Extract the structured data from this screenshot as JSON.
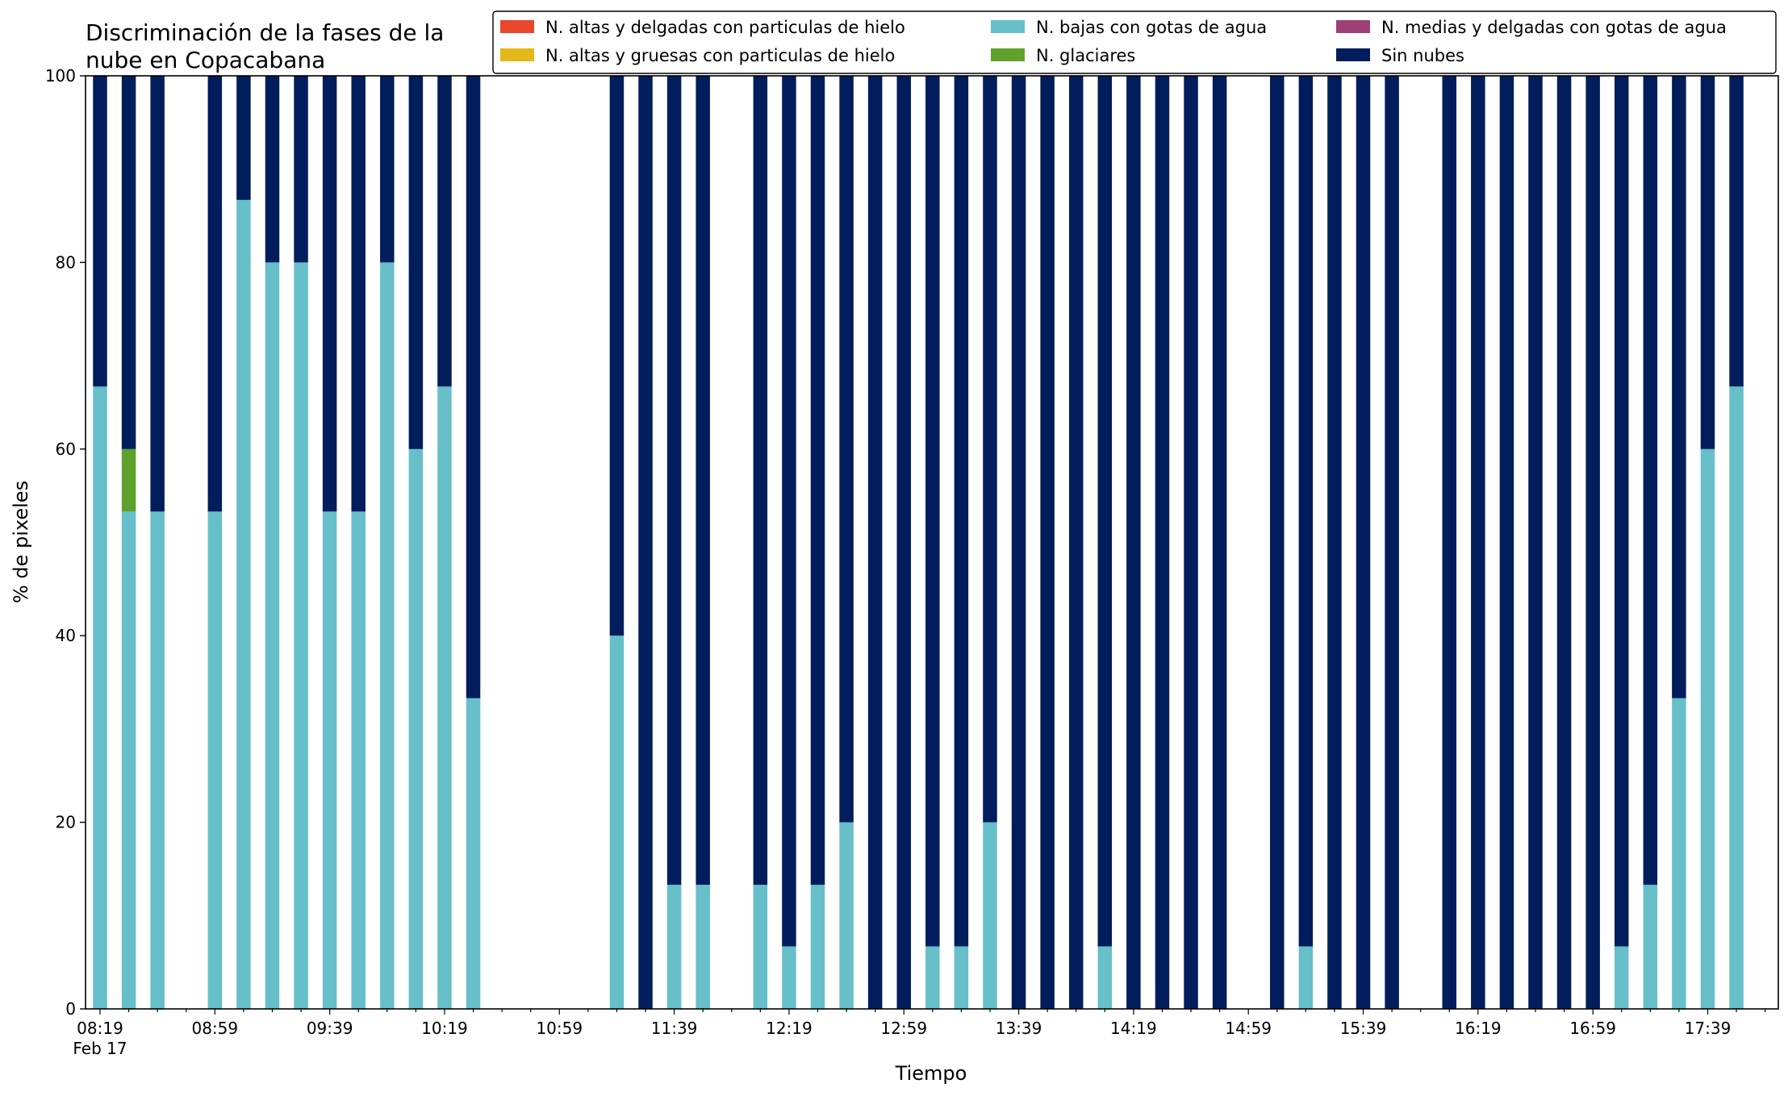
{
  "chart_data": {
    "type": "bar",
    "stacked": true,
    "title_lines": [
      "Discriminación de la fases de la",
      "nube en Copacabana"
    ],
    "xlabel": "Tiempo",
    "ylabel": "% de pixeles",
    "ylim": [
      0,
      100
    ],
    "grid": false,
    "legend_position": "top-right",
    "x_ticks": [
      "08:19",
      "08:59",
      "09:39",
      "10:19",
      "10:59",
      "11:39",
      "12:19",
      "12:59",
      "13:39",
      "14:19",
      "14:59",
      "15:39",
      "16:19",
      "16:59",
      "17:39"
    ],
    "x_date_label": "Feb 17",
    "y_ticks": [
      "0",
      "20",
      "40",
      "60",
      "80",
      "100"
    ],
    "slot_step_minutes": 10,
    "series": [
      {
        "name": "N. altas y delgadas con particulas de hielo",
        "color": "#e8472b"
      },
      {
        "name": "N. altas y gruesas con particulas de hielo",
        "color": "#e3b81a"
      },
      {
        "name": "N. bajas con gotas de agua",
        "color": "#66bfc9"
      },
      {
        "name": "N. glaciares",
        "color": "#60a12e"
      },
      {
        "name": "N. medias y delgadas con gotas de agua",
        "color": "#9e3f78"
      },
      {
        "name": "Sin nubes",
        "color": "#021d5c"
      }
    ],
    "bars": [
      {
        "time": "08:19",
        "water_low": 66.7,
        "glacier": 0,
        "clear": 33.3
      },
      {
        "time": "08:29",
        "water_low": 53.3,
        "glacier": 6.7,
        "clear": 40
      },
      {
        "time": "08:39",
        "water_low": 53.3,
        "glacier": 0,
        "clear": 46.7
      },
      {
        "time": "08:59",
        "water_low": 53.3,
        "glacier": 0,
        "clear": 46.7
      },
      {
        "time": "09:09",
        "water_low": 86.7,
        "glacier": 0,
        "clear": 13.3
      },
      {
        "time": "09:19",
        "water_low": 80,
        "glacier": 0,
        "clear": 20
      },
      {
        "time": "09:29",
        "water_low": 80,
        "glacier": 0,
        "clear": 20
      },
      {
        "time": "09:39",
        "water_low": 53.3,
        "glacier": 0,
        "clear": 46.7
      },
      {
        "time": "09:49",
        "water_low": 53.3,
        "glacier": 0,
        "clear": 46.7
      },
      {
        "time": "09:59",
        "water_low": 80,
        "glacier": 0,
        "clear": 20
      },
      {
        "time": "10:09",
        "water_low": 60,
        "glacier": 0,
        "clear": 40
      },
      {
        "time": "10:19",
        "water_low": 66.7,
        "glacier": 0,
        "clear": 33.3
      },
      {
        "time": "10:29",
        "water_low": 33.3,
        "glacier": 0,
        "clear": 66.7
      },
      {
        "time": "11:19",
        "water_low": 40,
        "glacier": 0,
        "clear": 60
      },
      {
        "time": "11:29",
        "water_low": 0,
        "glacier": 0,
        "clear": 100
      },
      {
        "time": "11:39",
        "water_low": 13.3,
        "glacier": 0,
        "clear": 86.7
      },
      {
        "time": "11:49",
        "water_low": 13.3,
        "glacier": 0,
        "clear": 86.7
      },
      {
        "time": "12:09",
        "water_low": 13.3,
        "glacier": 0,
        "clear": 86.7
      },
      {
        "time": "12:19",
        "water_low": 6.7,
        "glacier": 0,
        "clear": 93.3
      },
      {
        "time": "12:29",
        "water_low": 13.3,
        "glacier": 0,
        "clear": 86.7
      },
      {
        "time": "12:39",
        "water_low": 20,
        "glacier": 0,
        "clear": 80
      },
      {
        "time": "12:49",
        "water_low": 0,
        "glacier": 0,
        "clear": 100
      },
      {
        "time": "12:59",
        "water_low": 0,
        "glacier": 0,
        "clear": 100
      },
      {
        "time": "13:09",
        "water_low": 6.7,
        "glacier": 0,
        "clear": 93.3
      },
      {
        "time": "13:19",
        "water_low": 6.7,
        "glacier": 0,
        "clear": 93.3
      },
      {
        "time": "13:29",
        "water_low": 20,
        "glacier": 0,
        "clear": 80
      },
      {
        "time": "13:39",
        "water_low": 0,
        "glacier": 0,
        "clear": 100
      },
      {
        "time": "13:49",
        "water_low": 0,
        "glacier": 0,
        "clear": 100
      },
      {
        "time": "13:59",
        "water_low": 0,
        "glacier": 0,
        "clear": 100
      },
      {
        "time": "14:09",
        "water_low": 6.7,
        "glacier": 0,
        "clear": 93.3
      },
      {
        "time": "14:19",
        "water_low": 0,
        "glacier": 0,
        "clear": 100
      },
      {
        "time": "14:29",
        "water_low": 0,
        "glacier": 0,
        "clear": 100
      },
      {
        "time": "14:39",
        "water_low": 0,
        "glacier": 0,
        "clear": 100
      },
      {
        "time": "14:49",
        "water_low": 0,
        "glacier": 0,
        "clear": 100
      },
      {
        "time": "15:09",
        "water_low": 0,
        "glacier": 0,
        "clear": 100
      },
      {
        "time": "15:19",
        "water_low": 6.7,
        "glacier": 0,
        "clear": 93.3
      },
      {
        "time": "15:29",
        "water_low": 0,
        "glacier": 0,
        "clear": 100
      },
      {
        "time": "15:39",
        "water_low": 0,
        "glacier": 0,
        "clear": 100
      },
      {
        "time": "15:49",
        "water_low": 0,
        "glacier": 0,
        "clear": 100
      },
      {
        "time": "16:09",
        "water_low": 0,
        "glacier": 0,
        "clear": 100
      },
      {
        "time": "16:19",
        "water_low": 0,
        "glacier": 0,
        "clear": 100
      },
      {
        "time": "16:29",
        "water_low": 0,
        "glacier": 0,
        "clear": 100
      },
      {
        "time": "16:39",
        "water_low": 0,
        "glacier": 0,
        "clear": 100
      },
      {
        "time": "16:49",
        "water_low": 0,
        "glacier": 0,
        "clear": 100
      },
      {
        "time": "16:59",
        "water_low": 0,
        "glacier": 0,
        "clear": 100
      },
      {
        "time": "17:09",
        "water_low": 6.7,
        "glacier": 0,
        "clear": 93.3
      },
      {
        "time": "17:19",
        "water_low": 13.3,
        "glacier": 0,
        "clear": 86.7
      },
      {
        "time": "17:29",
        "water_low": 33.3,
        "glacier": 0,
        "clear": 66.7
      },
      {
        "time": "17:39",
        "water_low": 60,
        "glacier": 0,
        "clear": 40
      },
      {
        "time": "17:49",
        "water_low": 66.7,
        "glacier": 0,
        "clear": 33.3
      }
    ]
  }
}
